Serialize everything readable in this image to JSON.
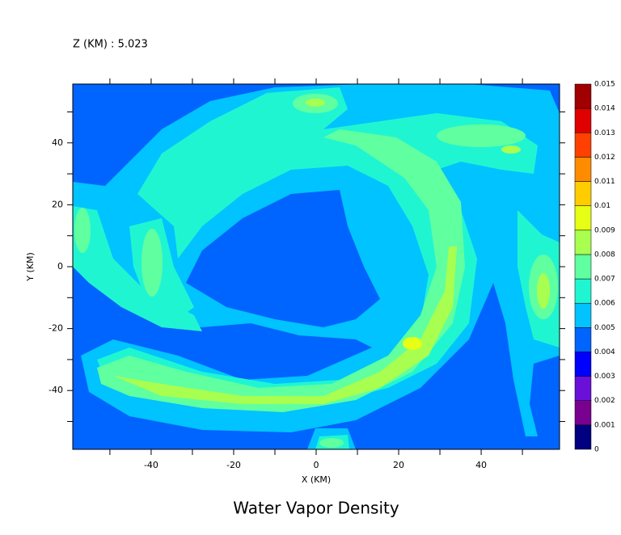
{
  "chart_data": {
    "type": "contour",
    "title": "Water Vapor Density",
    "subtitle": "Z (KM) : 5.023",
    "x_label": "X (KM)",
    "y_label": "Y (KM)",
    "xlim": [
      -59,
      59
    ],
    "ylim": [
      -59,
      59
    ],
    "xticks": [
      -40,
      -20,
      0,
      20,
      40
    ],
    "xminor": [
      -50,
      -30,
      -10,
      10,
      30,
      50
    ],
    "yticks": [
      -40,
      -20,
      0,
      20,
      40
    ],
    "yminor": [
      -50,
      -30,
      -10,
      10,
      30,
      50
    ],
    "colorbar": {
      "levels": [
        0,
        0.001,
        0.002,
        0.003,
        0.004,
        0.005,
        0.006,
        0.007,
        0.008,
        0.009,
        0.01,
        0.011,
        0.012,
        0.013,
        0.014,
        0.015
      ],
      "colors": [
        "#000080",
        "#7a0090",
        "#6a10d8",
        "#0000ff",
        "#0064ff",
        "#00c3ff",
        "#20f5d2",
        "#60ffa0",
        "#a8ff50",
        "#e6ff14",
        "#ffcc00",
        "#ff8c00",
        "#ff4000",
        "#e00000",
        "#a00000"
      ]
    }
  }
}
